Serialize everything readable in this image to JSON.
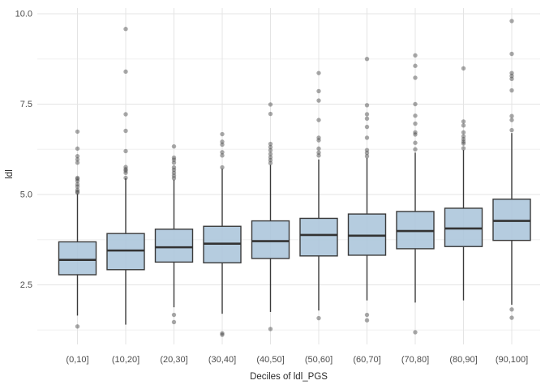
{
  "chart_data": {
    "type": "boxplot",
    "xlabel": "Deciles of ldl_PGS",
    "ylabel": "ldl",
    "categories": [
      "(0,10]",
      "(10,20]",
      "(20,30]",
      "(30,40]",
      "(40,50]",
      "(50,60]",
      "(60,70]",
      "(70,80]",
      "(80,90]",
      "(90,100]"
    ],
    "y_axis": {
      "major_ticks": {
        "labels": [
          "10.0",
          "7.5",
          "5.0",
          "2.5"
        ],
        "values": [
          10.0,
          7.5,
          5.0,
          2.5
        ]
      },
      "minor_ticks": [
        8.75,
        6.25,
        3.75,
        1.25
      ],
      "ylim": [
        0.9,
        10.15
      ],
      "grid": "on"
    },
    "legend": "none",
    "boxes": [
      {
        "category": "(0,10]",
        "lower_whisker": 1.65,
        "q1": 2.78,
        "median": 3.19,
        "q3": 3.69,
        "upper_whisker": 5.02,
        "outliers": [
          6.74,
          6.27,
          6.06,
          5.97,
          5.88,
          5.46,
          5.43,
          5.37,
          5.28,
          5.22,
          5.13,
          5.08,
          5.05,
          1.35
        ]
      },
      {
        "category": "(10,20]",
        "lower_whisker": 1.4,
        "q1": 2.92,
        "median": 3.45,
        "q3": 3.92,
        "upper_whisker": 5.45,
        "outliers": [
          9.58,
          8.4,
          7.22,
          6.76,
          6.2,
          5.76,
          5.7,
          5.66,
          5.6,
          5.46
        ]
      },
      {
        "category": "(20,30]",
        "lower_whisker": 1.88,
        "q1": 3.13,
        "median": 3.54,
        "q3": 4.04,
        "upper_whisker": 5.41,
        "outliers": [
          6.33,
          6.02,
          5.96,
          5.88,
          5.75,
          5.68,
          5.6,
          5.52,
          5.45,
          1.67,
          1.47
        ]
      },
      {
        "category": "(30,40]",
        "lower_whisker": 1.7,
        "q1": 3.11,
        "median": 3.64,
        "q3": 4.12,
        "upper_whisker": 5.71,
        "outliers": [
          6.67,
          6.46,
          6.38,
          6.17,
          6.08,
          5.75,
          1.16,
          1.12
        ]
      },
      {
        "category": "(40,50]",
        "lower_whisker": 1.75,
        "q1": 3.23,
        "median": 3.71,
        "q3": 4.27,
        "upper_whisker": 5.82,
        "outliers": [
          7.49,
          7.23,
          6.4,
          6.31,
          6.22,
          6.12,
          6.03,
          5.95,
          5.87,
          1.28
        ]
      },
      {
        "category": "(50,60]",
        "lower_whisker": 1.79,
        "q1": 3.3,
        "median": 3.88,
        "q3": 4.34,
        "upper_whisker": 5.97,
        "outliers": [
          8.36,
          7.86,
          7.6,
          7.06,
          6.57,
          6.5,
          6.27,
          6.16,
          6.08,
          1.58
        ]
      },
      {
        "category": "(60,70]",
        "lower_whisker": 2.07,
        "q1": 3.32,
        "median": 3.86,
        "q3": 4.46,
        "upper_whisker": 6.01,
        "outliers": [
          8.75,
          7.47,
          7.22,
          7.1,
          6.87,
          6.57,
          6.23,
          6.15,
          6.06,
          1.67,
          1.52
        ]
      },
      {
        "category": "(70,80]",
        "lower_whisker": 2.01,
        "q1": 3.5,
        "median": 3.99,
        "q3": 4.53,
        "upper_whisker": 6.16,
        "outliers": [
          8.85,
          8.56,
          8.23,
          7.5,
          7.18,
          6.96,
          6.72,
          6.66,
          6.43,
          6.25,
          1.19
        ]
      },
      {
        "category": "(80,90]",
        "lower_whisker": 2.07,
        "q1": 3.56,
        "median": 4.06,
        "q3": 4.62,
        "upper_whisker": 6.23,
        "outliers": [
          8.49,
          7.02,
          6.91,
          6.72,
          6.61,
          6.53,
          6.46,
          6.41,
          6.28
        ]
      },
      {
        "category": "(90,100]",
        "lower_whisker": 1.95,
        "q1": 3.73,
        "median": 4.27,
        "q3": 4.87,
        "upper_whisker": 6.7,
        "outliers": [
          9.8,
          8.89,
          8.36,
          8.28,
          8.2,
          7.88,
          7.17,
          7.06,
          6.78,
          1.82,
          1.59
        ]
      }
    ],
    "style": {
      "box_fill": "#ABC5DB",
      "box_border": "#3a3a3a",
      "median_color": "#333333",
      "whisker_color": "#3a3a3a",
      "outlier_color": "#404040",
      "grid_major_color": "#e4e4e4",
      "grid_minor_color": "#f0f0f0",
      "tick_text_color": "#4d4d4d",
      "axis_title_color": "#2b2b2b",
      "background": "#ffffff"
    }
  }
}
